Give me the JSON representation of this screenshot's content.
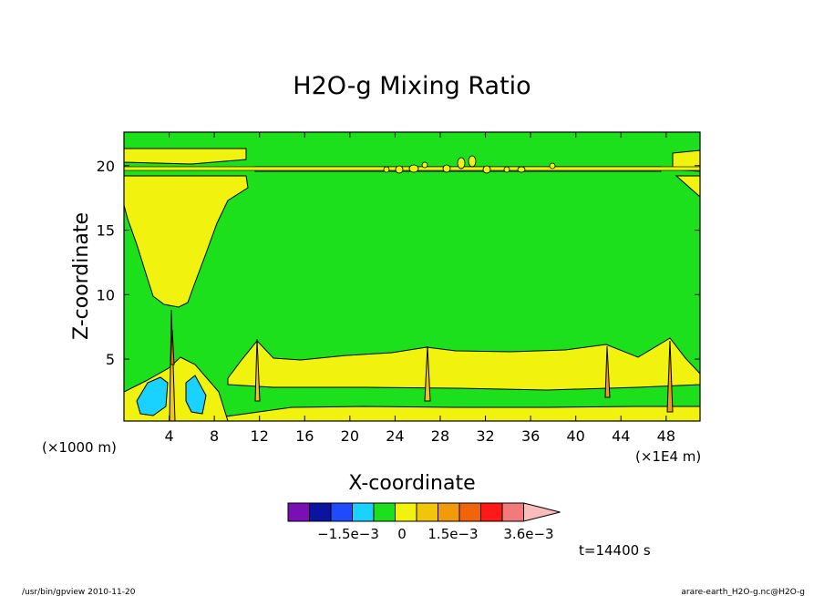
{
  "chart_data": {
    "type": "heatmap",
    "title": "H2O-g Mixing Ratio",
    "xlabel": "X-coordinate",
    "ylabel": "Z-coordinate",
    "x_unit_left": "(×1000 m)",
    "x_unit_right": "(×1E4 m)",
    "xlim": [
      0,
      51
    ],
    "ylim": [
      0.2,
      22.6
    ],
    "x_ticks": [
      4,
      8,
      12,
      16,
      20,
      24,
      28,
      32,
      36,
      40,
      44,
      48
    ],
    "y_ticks": [
      5,
      10,
      15,
      20
    ],
    "colorbar": {
      "colors": [
        "#7a0fb4",
        "#0a14a0",
        "#1f4bff",
        "#19d2ff",
        "#1ce01c",
        "#f2f20f",
        "#f2c50a",
        "#f29a0a",
        "#f2640a",
        "#ff1a1a",
        "#f27a7a",
        "#fbbcbc"
      ],
      "tick_labels": [
        "−1.5e−3",
        "0",
        "1.5e−3",
        "3.6e−3"
      ]
    },
    "time_label": "t=14400 s"
  },
  "footer": {
    "left": "/usr/bin/gpview  2010-11-20",
    "right": "arare-earth_H2O-g.nc@H2O-g"
  },
  "colors": {
    "background_field": "#1ce01c",
    "positive_region": "#f2f20f",
    "negative_region": "#19d2ff"
  }
}
